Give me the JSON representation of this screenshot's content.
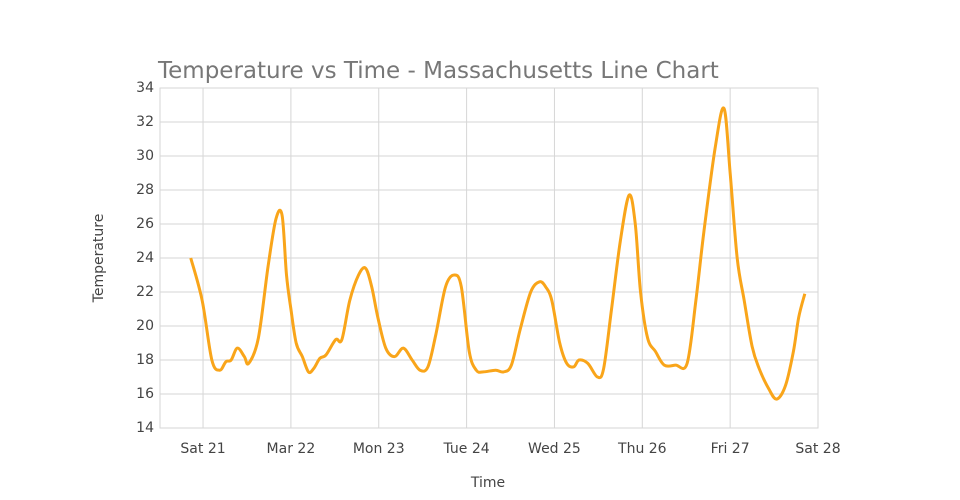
{
  "chart_data": {
    "type": "line",
    "title": "Temperature vs Time - Massachusetts Line Chart",
    "x_label": "Time",
    "y_label": "Temperature",
    "x": [
      20.86,
      20.99,
      21.1,
      21.19,
      21.26,
      21.32,
      21.39,
      21.47,
      21.52,
      21.63,
      21.74,
      21.83,
      21.9,
      21.95,
      22.0,
      22.06,
      22.13,
      22.2,
      22.26,
      22.33,
      22.4,
      22.51,
      22.58,
      22.67,
      22.77,
      22.85,
      22.92,
      22.99,
      23.08,
      23.18,
      23.28,
      23.38,
      23.47,
      23.56,
      23.65,
      23.76,
      23.86,
      23.94,
      24.03,
      24.11,
      24.19,
      24.33,
      24.42,
      24.51,
      24.61,
      24.73,
      24.83,
      24.9,
      24.97,
      25.06,
      25.14,
      25.22,
      25.28,
      25.38,
      25.49,
      25.56,
      25.65,
      25.75,
      25.85,
      25.92,
      25.98,
      26.06,
      26.15,
      26.25,
      26.38,
      26.51,
      26.61,
      26.7,
      26.83,
      26.93,
      27.0,
      27.08,
      27.16,
      27.25,
      27.33,
      27.44,
      27.53,
      27.63,
      27.72,
      27.78,
      27.85
    ],
    "series": [
      {
        "name": "Temperature",
        "color": "#f9a51a",
        "values": [
          24,
          21.5,
          18,
          17.4,
          17.9,
          18,
          18.7,
          18.2,
          17.8,
          19.3,
          23.5,
          26.3,
          26.5,
          23,
          21,
          19,
          18.2,
          17.3,
          17.5,
          18.1,
          18.3,
          19.2,
          19.2,
          21.5,
          23,
          23.4,
          22.3,
          20.5,
          18.7,
          18.2,
          18.7,
          18,
          17.4,
          17.6,
          19.5,
          22.3,
          23,
          22.3,
          18.5,
          17.4,
          17.3,
          17.4,
          17.3,
          17.7,
          19.8,
          22,
          22.6,
          22.3,
          21.5,
          19,
          17.8,
          17.6,
          18,
          17.8,
          17,
          17.5,
          21,
          25,
          27.7,
          26,
          22,
          19.3,
          18.5,
          17.7,
          17.7,
          17.8,
          21.5,
          25.5,
          30.5,
          32.8,
          29,
          24,
          21.5,
          18.8,
          17.5,
          16.3,
          15.7,
          16.5,
          18.5,
          20.5,
          21.9
        ]
      }
    ],
    "xlim": [
      20.51,
      28
    ],
    "xticks": [
      {
        "value": 21,
        "label": "Sat 21"
      },
      {
        "value": 22,
        "label": "Mar 22"
      },
      {
        "value": 23,
        "label": "Mon 23"
      },
      {
        "value": 24,
        "label": "Tue 24"
      },
      {
        "value": 25,
        "label": "Wed 25"
      },
      {
        "value": 26,
        "label": "Thu 26"
      },
      {
        "value": 27,
        "label": "Fri 27"
      },
      {
        "value": 28,
        "label": "Sat 28"
      }
    ],
    "ylim": [
      14,
      34
    ],
    "yticks": [
      14,
      16,
      18,
      20,
      22,
      24,
      26,
      28,
      30,
      32,
      34
    ],
    "grid": true
  }
}
